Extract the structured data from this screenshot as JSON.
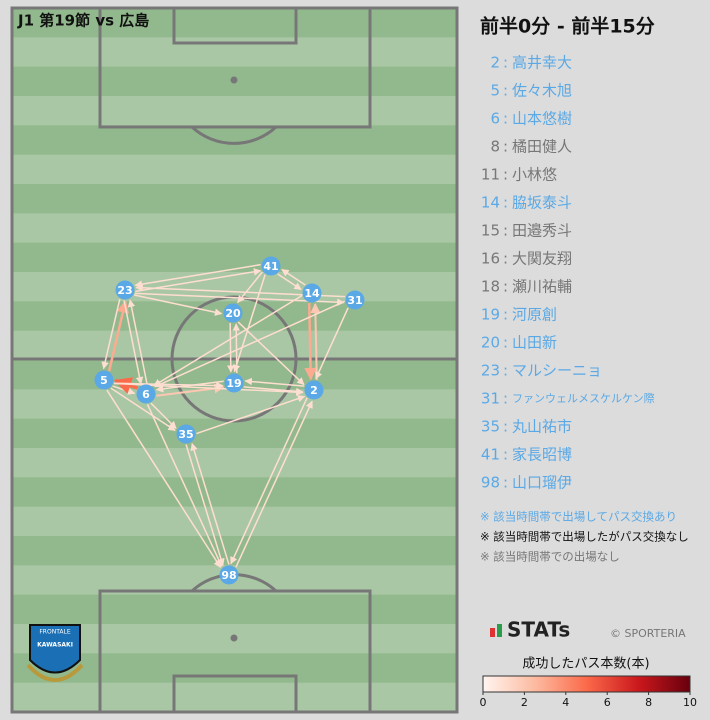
{
  "header": {
    "title": "J1 第19節 vs 広島",
    "period": "前半0分 - 前半15分"
  },
  "separator": ":",
  "players": [
    {
      "number": "2",
      "name": "高井幸大",
      "status": "pass"
    },
    {
      "number": "5",
      "name": "佐々木旭",
      "status": "pass"
    },
    {
      "number": "6",
      "name": "山本悠樹",
      "status": "pass"
    },
    {
      "number": "8",
      "name": "橘田健人",
      "status": "none"
    },
    {
      "number": "11",
      "name": "小林悠",
      "status": "none"
    },
    {
      "number": "14",
      "name": "脇坂泰斗",
      "status": "pass"
    },
    {
      "number": "15",
      "name": "田邉秀斗",
      "status": "none"
    },
    {
      "number": "16",
      "name": "大関友翔",
      "status": "none"
    },
    {
      "number": "18",
      "name": "瀬川祐輔",
      "status": "none"
    },
    {
      "number": "19",
      "name": "河原創",
      "status": "pass"
    },
    {
      "number": "20",
      "name": "山田新",
      "status": "pass"
    },
    {
      "number": "23",
      "name": "マルシーニョ",
      "status": "pass"
    },
    {
      "number": "31",
      "name": "ファンウェルメスケルケン際",
      "status": "pass"
    },
    {
      "number": "35",
      "name": "丸山祐市",
      "status": "pass"
    },
    {
      "number": "41",
      "name": "家長昭博",
      "status": "pass"
    },
    {
      "number": "98",
      "name": "山口瑠伊",
      "status": "pass"
    }
  ],
  "notes": [
    "※ 該当時間帯で出場してパス交換あり",
    "※ 該当時間帯で出場したがパス交換なし",
    "※ 該当時間帯での出場なし"
  ],
  "status_colors": {
    "pass": "#5aa9e6",
    "nopass": "#111111",
    "none": "#777777"
  },
  "nodes": [
    "41",
    "23",
    "14",
    "31",
    "20",
    "5",
    "6",
    "19",
    "2",
    "35",
    "98"
  ],
  "edges": [
    {
      "from": "5",
      "to": "23",
      "count": 3
    },
    {
      "from": "23",
      "to": "5",
      "count": 1
    },
    {
      "from": "5",
      "to": "6",
      "count": 1
    },
    {
      "from": "6",
      "to": "5",
      "count": 5
    },
    {
      "from": "6",
      "to": "19",
      "count": 2
    },
    {
      "from": "19",
      "to": "6",
      "count": 1
    },
    {
      "from": "5",
      "to": "19",
      "count": 1
    },
    {
      "from": "19",
      "to": "2",
      "count": 1
    },
    {
      "from": "2",
      "to": "19",
      "count": 1
    },
    {
      "from": "14",
      "to": "2",
      "count": 3
    },
    {
      "from": "2",
      "to": "14",
      "count": 2
    },
    {
      "from": "41",
      "to": "23",
      "count": 1
    },
    {
      "from": "23",
      "to": "41",
      "count": 1
    },
    {
      "from": "41",
      "to": "14",
      "count": 1
    },
    {
      "from": "14",
      "to": "41",
      "count": 1
    },
    {
      "from": "31",
      "to": "23",
      "count": 1
    },
    {
      "from": "23",
      "to": "31",
      "count": 1
    },
    {
      "from": "20",
      "to": "19",
      "count": 1
    },
    {
      "from": "19",
      "to": "20",
      "count": 1
    },
    {
      "from": "41",
      "to": "20",
      "count": 1
    },
    {
      "from": "35",
      "to": "98",
      "count": 1
    },
    {
      "from": "98",
      "to": "35",
      "count": 1
    },
    {
      "from": "6",
      "to": "98",
      "count": 1
    },
    {
      "from": "5",
      "to": "98",
      "count": 1
    },
    {
      "from": "2",
      "to": "98",
      "count": 1
    },
    {
      "from": "98",
      "to": "2",
      "count": 1
    },
    {
      "from": "6",
      "to": "35",
      "count": 1
    },
    {
      "from": "35",
      "to": "2",
      "count": 1
    },
    {
      "from": "5",
      "to": "2",
      "count": 1
    },
    {
      "from": "23",
      "to": "6",
      "count": 1
    },
    {
      "from": "6",
      "to": "23",
      "count": 1
    },
    {
      "from": "31",
      "to": "2",
      "count": 1
    },
    {
      "from": "20",
      "to": "2",
      "count": 1
    },
    {
      "from": "31",
      "to": "6",
      "count": 1
    },
    {
      "from": "41",
      "to": "19",
      "count": 1
    },
    {
      "from": "23",
      "to": "20",
      "count": 1
    },
    {
      "from": "5",
      "to": "35",
      "count": 1
    },
    {
      "from": "14",
      "to": "6",
      "count": 1
    }
  ],
  "logo": {
    "brand": "STATs",
    "credit": "© SPORTERIA",
    "club_top": "FRONTALE",
    "club_bottom": "KAWASAKI"
  },
  "colorbar": {
    "title": "成功したパス本数(本)",
    "lim": [
      0,
      10
    ],
    "ticks": [
      0,
      2,
      4,
      6,
      8,
      10
    ],
    "colors": [
      "#fff5f0",
      "#fcbba1",
      "#fb6a4a",
      "#cb181d",
      "#67000d"
    ]
  }
}
